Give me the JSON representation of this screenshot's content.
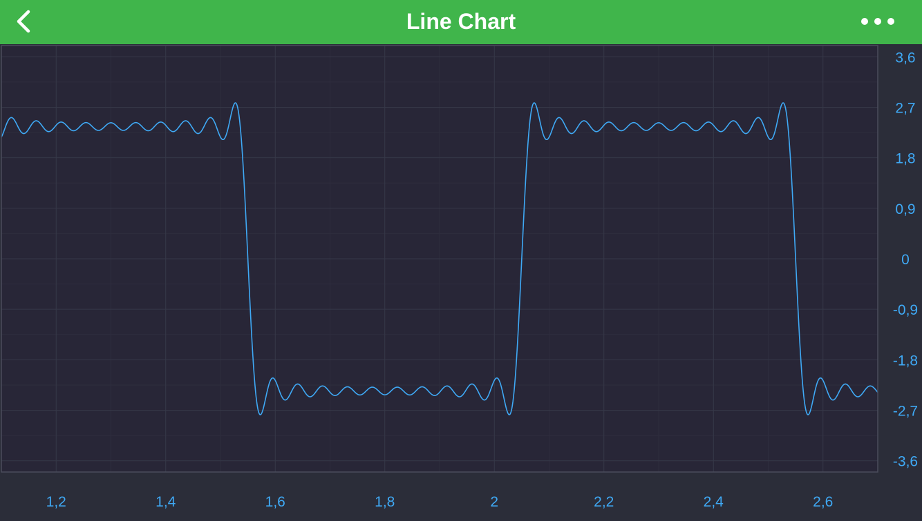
{
  "navbar": {
    "title": "Line Chart",
    "back_icon": "chevron-left-icon",
    "more_icon": "more-horizontal-icon"
  },
  "colors": {
    "navbar_bg": "#40b54b",
    "plot_bg": "#282637",
    "page_bg": "#2b2d39",
    "line": "#3fa9f5",
    "grid": "#363848",
    "axis_label": "#3fa9f5"
  },
  "chart_data": {
    "type": "line",
    "title": "",
    "xlabel": "",
    "ylabel": "",
    "xlim": [
      1.1,
      2.7
    ],
    "ylim": [
      -3.8,
      3.8
    ],
    "grid": true,
    "x_ticks": [
      1.2,
      1.4,
      1.6,
      1.8,
      2.0,
      2.2,
      2.4,
      2.6
    ],
    "x_tick_labels": [
      "1,2",
      "1,4",
      "1,6",
      "1,8",
      "2",
      "2,2",
      "2,4",
      "2,6"
    ],
    "y_ticks": [
      3.6,
      2.7,
      1.8,
      0.9,
      0,
      -0.9,
      -1.8,
      -2.7,
      -3.6
    ],
    "y_tick_labels": [
      "3,6",
      "2,7",
      "1,8",
      "0,9",
      "0",
      "-0,9",
      "-1,8",
      "-2,7",
      "-3,6"
    ],
    "y_axis_position": "right",
    "series": [
      {
        "name": "",
        "function": "fourier square wave, period 1, 11 odd harmonics",
        "formula": "y = 3 * Σ_{n=1,3,5,...,21} sin(2πn(x - 1.05)) / n",
        "amplitude": 3,
        "period": 1,
        "phase_x": 1.05,
        "harmonics": 11,
        "x_start": 1.1,
        "x_end": 2.7,
        "samples": 1600
      }
    ]
  }
}
